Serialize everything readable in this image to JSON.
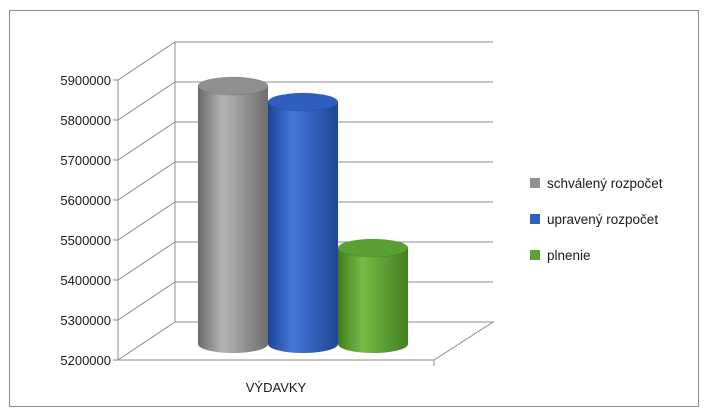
{
  "chart_data": {
    "type": "bar",
    "style": "3d-cylinder",
    "categories": [
      "VÝDAVKY"
    ],
    "series": [
      {
        "name": "schválený rozpočet",
        "values": [
          5845000
        ],
        "color": "#8f8f8f"
      },
      {
        "name": "upravený rozpočet",
        "values": [
          5805000
        ],
        "color": "#2f5ec0"
      },
      {
        "name": "plnenie",
        "values": [
          5440000
        ],
        "color": "#5aa033"
      }
    ],
    "yticks": [
      "5200000",
      "5300000",
      "5400000",
      "5500000",
      "5600000",
      "5700000",
      "5800000",
      "5900000"
    ],
    "ylim": [
      5200000,
      5900000
    ],
    "grid": true,
    "legend_position": "right"
  }
}
